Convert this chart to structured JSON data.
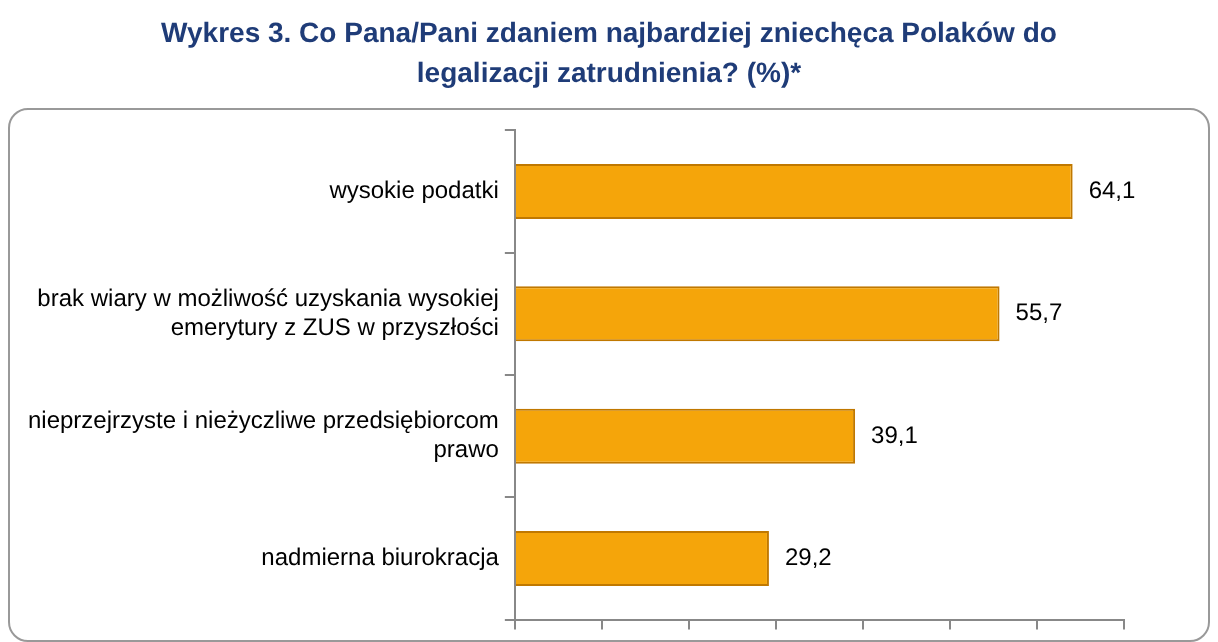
{
  "chart_data": {
    "type": "bar",
    "orientation": "horizontal",
    "title": "Wykres 3. Co Pana/Pani zdaniem najbardziej zniechęca Polaków do legalizacji zatrudnienia? (%)*",
    "categories": [
      "wysokie podatki",
      "brak wiary w możliwość uzyskania wysokiej emerytury z ZUS w przyszłości",
      "nieprzejrzyste i nieżyczliwe przedsiębiorcom prawo",
      "nadmierna biurokracja"
    ],
    "values": [
      64.1,
      55.7,
      39.1,
      29.2
    ],
    "value_labels": [
      "64,1",
      "55,7",
      "39,1",
      "29,2"
    ],
    "color": "#f5a50a",
    "grid": false,
    "legend": false,
    "tick_labels": "y"
  }
}
